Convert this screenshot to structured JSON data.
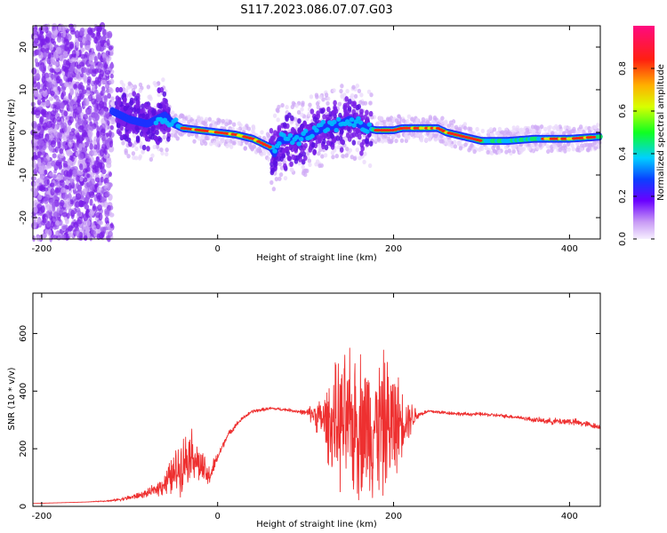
{
  "title": "S117.2023.086.07.07.G03",
  "colors": {
    "snr_line": "#ee3030",
    "spec_purple": "#7a1ee8",
    "spec_light": "#d8b8f8",
    "axis": "#000000"
  },
  "chart_data": [
    {
      "type": "heatmap",
      "xlabel": "Height of straight line (km)",
      "ylabel": "Frequency (Hz)",
      "xlim": [
        -210,
        435
      ],
      "ylim": [
        -25,
        25
      ],
      "xticks": [
        -200,
        0,
        200,
        400
      ],
      "yticks": [
        -20,
        -10,
        0,
        10,
        20
      ],
      "grid": false,
      "colorbar": {
        "label": "Normalized spectral amplitude",
        "range": [
          0,
          1
        ],
        "ticks": [
          0.0,
          0.2,
          0.4,
          0.6,
          0.8
        ],
        "tick_labels": [
          "0.0",
          "0.2",
          "0.4",
          "0.6",
          "0.8"
        ],
        "colormap": "rainbow"
      },
      "ridge": {
        "x": [
          -210,
          -120,
          -100,
          -80,
          -60,
          -50,
          -40,
          -20,
          0,
          20,
          40,
          60,
          65,
          70,
          100,
          120,
          140,
          150,
          160,
          170,
          180,
          200,
          210,
          250,
          260,
          280,
          300,
          330,
          360,
          380,
          400,
          435
        ],
        "y": [
          0,
          5,
          3,
          2,
          4,
          2,
          1,
          0.5,
          0,
          -0.5,
          -1.5,
          -3.5,
          -5,
          -2,
          -1,
          1,
          2,
          3,
          2,
          1,
          0.5,
          0.5,
          1,
          1,
          0,
          -1,
          -2,
          -2,
          -1.5,
          -1.5,
          -1.5,
          -1
        ]
      }
    },
    {
      "type": "line",
      "xlabel": "Height of straight line (km)",
      "ylabel": "SNR (10 * v/v)",
      "xlim": [
        -210,
        435
      ],
      "ylim": [
        0,
        740
      ],
      "xticks": [
        -200,
        0,
        200,
        400
      ],
      "yticks": [
        0,
        200,
        400,
        600
      ],
      "grid": false,
      "series": [
        {
          "x": [
            -210,
            -150,
            -120,
            -100,
            -80,
            -70,
            -60,
            -50,
            -40,
            -30,
            -20,
            -10,
            0,
            10,
            20,
            30,
            40,
            60,
            80,
            100,
            110,
            120,
            130,
            140,
            150,
            160,
            170,
            180,
            190,
            200,
            210,
            230,
            240,
            260,
            280,
            300,
            320,
            340,
            360,
            380,
            400,
            420,
            435
          ],
          "values": [
            10,
            15,
            20,
            30,
            45,
            60,
            80,
            110,
            150,
            190,
            140,
            100,
            170,
            240,
            280,
            310,
            330,
            340,
            335,
            325,
            320,
            300,
            290,
            285,
            280,
            290,
            280,
            275,
            280,
            285,
            300,
            320,
            330,
            325,
            320,
            320,
            315,
            310,
            300,
            295,
            295,
            285,
            275
          ],
          "spread": [
            0,
            0,
            3,
            8,
            12,
            20,
            40,
            70,
            90,
            80,
            60,
            40,
            15,
            10,
            8,
            6,
            6,
            5,
            5,
            8,
            40,
            80,
            160,
            210,
            230,
            240,
            230,
            220,
            230,
            200,
            100,
            8,
            6,
            6,
            6,
            6,
            6,
            6,
            8,
            10,
            12,
            10,
            8
          ]
        }
      ]
    }
  ]
}
